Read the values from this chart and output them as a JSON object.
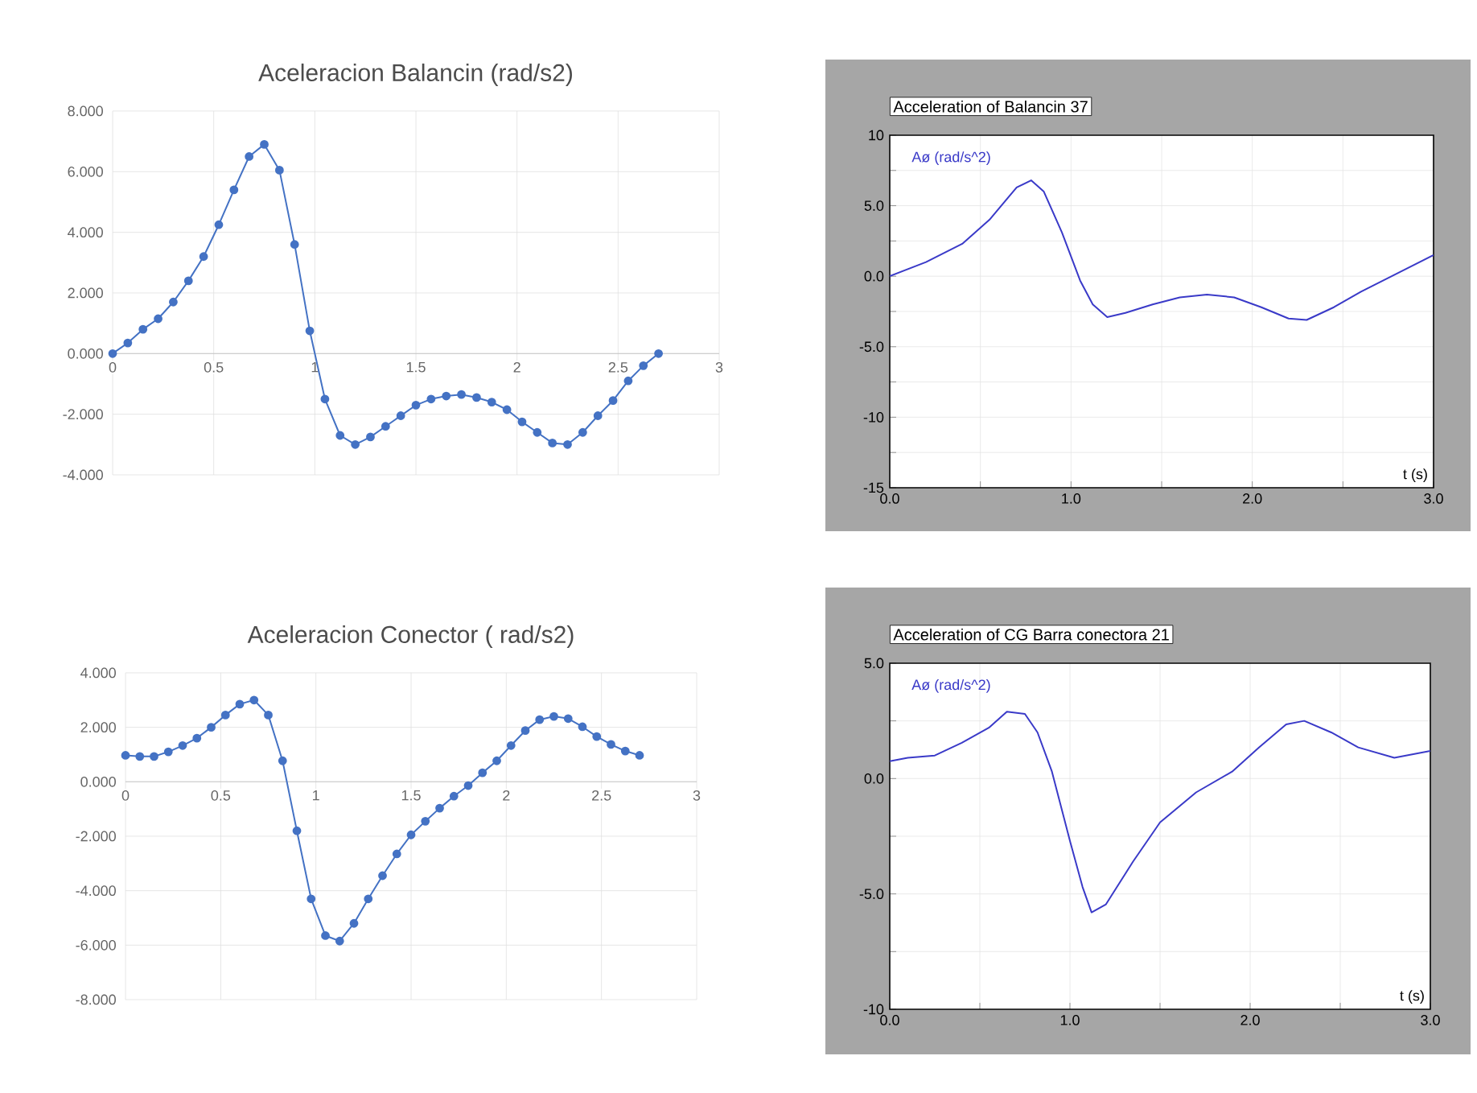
{
  "chart_data": [
    {
      "type": "line",
      "title": "Aceleracion Balancin  (rad/s2)",
      "x": [
        0,
        0.075,
        0.15,
        0.225,
        0.3,
        0.375,
        0.45,
        0.525,
        0.6,
        0.675,
        0.75,
        0.825,
        0.9,
        0.975,
        1.05,
        1.125,
        1.2,
        1.275,
        1.35,
        1.425,
        1.5,
        1.575,
        1.65,
        1.725,
        1.8,
        1.875,
        1.95,
        2.025,
        2.1,
        2.175,
        2.25,
        2.325,
        2.4,
        2.475,
        2.55,
        2.625,
        2.7
      ],
      "series": [
        {
          "color": "#4472c4",
          "values": [
            0,
            0.35,
            0.8,
            1.15,
            1.7,
            2.4,
            3.2,
            4.25,
            5.4,
            6.5,
            6.9,
            6.05,
            3.6,
            0.75,
            -1.5,
            -2.7,
            -3.0,
            -2.75,
            -2.4,
            -2.05,
            -1.7,
            -1.5,
            -1.4,
            -1.35,
            -1.45,
            -1.6,
            -1.85,
            -2.25,
            -2.6,
            -2.95,
            -3.0,
            -2.6,
            -2.05,
            -1.55,
            -0.9,
            -0.4,
            0
          ]
        }
      ],
      "xlim": [
        0,
        3
      ],
      "xticks": [
        0,
        0.5,
        1,
        1.5,
        2,
        2.5,
        3
      ],
      "ylim": [
        -4,
        8
      ],
      "yticks": [
        {
          "value": -4,
          "label": "-4.000"
        },
        {
          "value": -2,
          "label": "-2.000"
        },
        {
          "value": 0,
          "label": "0.000"
        },
        {
          "value": 2,
          "label": "2.000"
        },
        {
          "value": 4,
          "label": "4.000"
        },
        {
          "value": 6,
          "label": "6.000"
        },
        {
          "value": 8,
          "label": "8.000"
        }
      ],
      "grid": true,
      "marker": "circle"
    },
    {
      "type": "line",
      "title": "Aceleracion Conector  ( rad/s2)",
      "x": [
        0,
        0.075,
        0.15,
        0.225,
        0.3,
        0.375,
        0.45,
        0.525,
        0.6,
        0.675,
        0.75,
        0.825,
        0.9,
        0.975,
        1.05,
        1.125,
        1.2,
        1.275,
        1.35,
        1.425,
        1.5,
        1.575,
        1.65,
        1.725,
        1.8,
        1.875,
        1.95,
        2.025,
        2.1,
        2.175,
        2.25,
        2.325,
        2.4,
        2.475,
        2.55,
        2.625,
        2.7
      ],
      "series": [
        {
          "color": "#4472c4",
          "values": [
            0.97,
            0.93,
            0.93,
            1.1,
            1.33,
            1.6,
            2.0,
            2.45,
            2.85,
            3.0,
            2.45,
            0.77,
            -1.8,
            -4.3,
            -5.65,
            -5.85,
            -5.2,
            -4.3,
            -3.45,
            -2.65,
            -1.95,
            -1.45,
            -0.97,
            -0.53,
            -0.14,
            0.33,
            0.77,
            1.33,
            1.88,
            2.28,
            2.4,
            2.32,
            2.02,
            1.66,
            1.37,
            1.13,
            0.97
          ]
        }
      ],
      "xlim": [
        0,
        3
      ],
      "xticks": [
        0,
        0.5,
        1,
        1.5,
        2,
        2.5,
        3
      ],
      "ylim": [
        -8,
        4
      ],
      "yticks": [
        {
          "value": -8,
          "label": "-8.000"
        },
        {
          "value": -6,
          "label": "-6.000"
        },
        {
          "value": -4,
          "label": "-4.000"
        },
        {
          "value": -2,
          "label": "-2.000"
        },
        {
          "value": 0,
          "label": "0.000"
        },
        {
          "value": 2,
          "label": "2.000"
        },
        {
          "value": 4,
          "label": "4.000"
        }
      ],
      "grid": true,
      "marker": "circle"
    },
    {
      "type": "line",
      "title": "Acceleration of Balancin 37",
      "xlabel": "t (s)",
      "x": [
        0,
        0.2,
        0.4,
        0.55,
        0.7,
        0.78,
        0.85,
        0.95,
        1.05,
        1.12,
        1.2,
        1.3,
        1.45,
        1.6,
        1.75,
        1.9,
        2.05,
        2.2,
        2.3,
        2.45,
        2.6,
        2.8,
        3.0
      ],
      "series": [
        {
          "name": "Aø (rad/s^2)",
          "color": "#3a3ac8",
          "values": [
            0,
            1.0,
            2.3,
            4.0,
            6.3,
            6.8,
            6.0,
            3.1,
            -0.3,
            -2.0,
            -2.9,
            -2.6,
            -2.0,
            -1.5,
            -1.3,
            -1.5,
            -2.2,
            -3.0,
            -3.1,
            -2.2,
            -1.1,
            0.2,
            1.5
          ]
        }
      ],
      "xlim": [
        0,
        3
      ],
      "xticks": [
        {
          "value": 0,
          "label": "0.0"
        },
        {
          "value": 0.5,
          "label": null
        },
        {
          "value": 1,
          "label": "1.0"
        },
        {
          "value": 1.5,
          "label": null
        },
        {
          "value": 2,
          "label": "2.0"
        },
        {
          "value": 2.5,
          "label": null
        },
        {
          "value": 3,
          "label": "3.0"
        }
      ],
      "ylim": [
        -15,
        10
      ],
      "yticks": [
        -15,
        {
          "value": -12.5,
          "label": null
        },
        -10,
        {
          "value": -7.5,
          "label": null
        },
        {
          "value": -5,
          "label": "-5.0"
        },
        {
          "value": -2.5,
          "label": null
        },
        {
          "value": 0,
          "label": "0.0"
        },
        {
          "value": 2.5,
          "label": null
        },
        {
          "value": 5,
          "label": "5.0"
        },
        {
          "value": 7.5,
          "label": null
        },
        10
      ],
      "grid": true
    },
    {
      "type": "line",
      "title": "Acceleration of CG Barra conectora 21",
      "xlabel": "t (s)",
      "x": [
        0,
        0.1,
        0.25,
        0.4,
        0.55,
        0.65,
        0.75,
        0.82,
        0.9,
        1.0,
        1.07,
        1.12,
        1.2,
        1.35,
        1.5,
        1.7,
        1.9,
        2.05,
        2.2,
        2.3,
        2.45,
        2.6,
        2.8,
        3.0
      ],
      "series": [
        {
          "name": "Aø (rad/s^2)",
          "color": "#3a3ac8",
          "values": [
            0.75,
            0.9,
            1.0,
            1.55,
            2.2,
            2.9,
            2.8,
            2.0,
            0.3,
            -2.7,
            -4.7,
            -5.8,
            -5.45,
            -3.6,
            -1.9,
            -0.6,
            0.3,
            1.35,
            2.35,
            2.5,
            2.0,
            1.35,
            0.9,
            1.2
          ]
        }
      ],
      "xlim": [
        0,
        3
      ],
      "xticks": [
        {
          "value": 0,
          "label": "0.0"
        },
        {
          "value": 0.5,
          "label": null
        },
        {
          "value": 1,
          "label": "1.0"
        },
        {
          "value": 1.5,
          "label": null
        },
        {
          "value": 2,
          "label": "2.0"
        },
        {
          "value": 2.5,
          "label": null
        },
        {
          "value": 3,
          "label": "3.0"
        }
      ],
      "ylim": [
        -10,
        5
      ],
      "yticks": [
        -10,
        {
          "value": -7.5,
          "label": null
        },
        {
          "value": -5,
          "label": "-5.0"
        },
        {
          "value": -2.5,
          "label": null
        },
        {
          "value": 0,
          "label": "0.0"
        },
        {
          "value": 2.5,
          "label": null
        },
        {
          "value": 5,
          "label": "5.0"
        }
      ],
      "grid": true
    }
  ]
}
